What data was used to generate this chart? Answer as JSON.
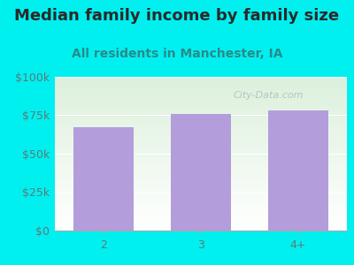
{
  "title": "Median family income by family size",
  "subtitle": "All residents in Manchester, IA",
  "categories": [
    "2",
    "3",
    "4+"
  ],
  "values": [
    67000,
    76000,
    78000
  ],
  "bar_color": "#b39ddb",
  "background_outer": "#00f0f0",
  "title_color": "#2a2a2a",
  "subtitle_color": "#2a8a8a",
  "tick_label_color": "#5a7a7a",
  "ylim": [
    0,
    100000
  ],
  "yticks": [
    0,
    25000,
    50000,
    75000,
    100000
  ],
  "ytick_labels": [
    "$0",
    "$25k",
    "$50k",
    "$75k",
    "$100k"
  ],
  "watermark": "City-Data.com",
  "title_fontsize": 13,
  "subtitle_fontsize": 10,
  "tick_fontsize": 9
}
